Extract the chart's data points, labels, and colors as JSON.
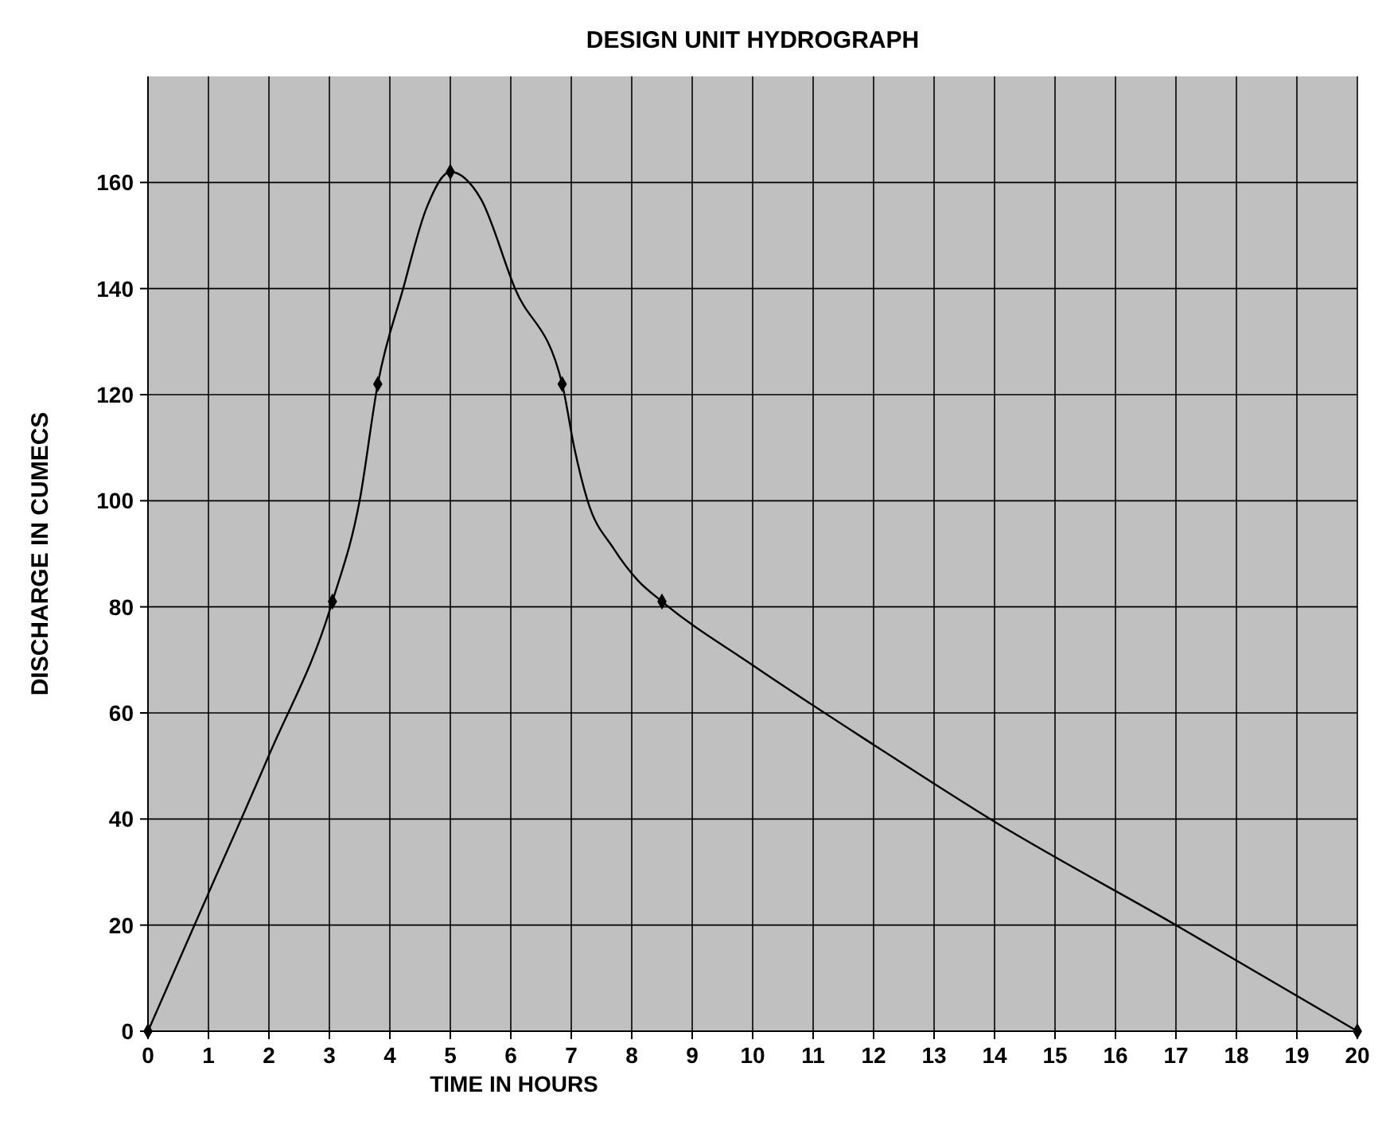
{
  "chart_data": {
    "type": "line",
    "title": "DESIGN UNIT HYDROGRAPH",
    "xlabel": "TIME IN HOURS",
    "ylabel": "DISCHARGE IN CUMECS",
    "series": [
      {
        "color": "#000000",
        "marker": "none",
        "x": [
          0,
          1,
          2,
          3.05,
          3.5,
          3.8,
          4.22,
          4.6,
          5,
          5.5,
          6.07,
          6.85,
          7.05,
          7.27,
          7.7,
          8.1,
          8.5,
          10,
          12,
          14,
          17,
          20
        ],
        "values": [
          0,
          26,
          52,
          81,
          100,
          122,
          140,
          155,
          162,
          157,
          140,
          122,
          110,
          100,
          91,
          85,
          81,
          69,
          54,
          39.5,
          20,
          0
        ]
      },
      {
        "type": "scatter",
        "color": "#000000",
        "marker": "diamond",
        "x": [
          0,
          3.05,
          3.8,
          5,
          6.85,
          8.5,
          20
        ],
        "values": [
          0,
          81,
          122,
          162,
          122,
          81,
          0
        ]
      }
    ],
    "xlim": [
      0,
      20
    ],
    "xticks": [
      0,
      1,
      2,
      3,
      4,
      5,
      6,
      7,
      8,
      9,
      10,
      11,
      12,
      13,
      14,
      15,
      16,
      17,
      18,
      19,
      20
    ],
    "ylim": [
      0,
      180
    ],
    "yticks": [
      0,
      20,
      40,
      60,
      80,
      100,
      120,
      140,
      160
    ],
    "grid": true,
    "line_style": "solid"
  }
}
